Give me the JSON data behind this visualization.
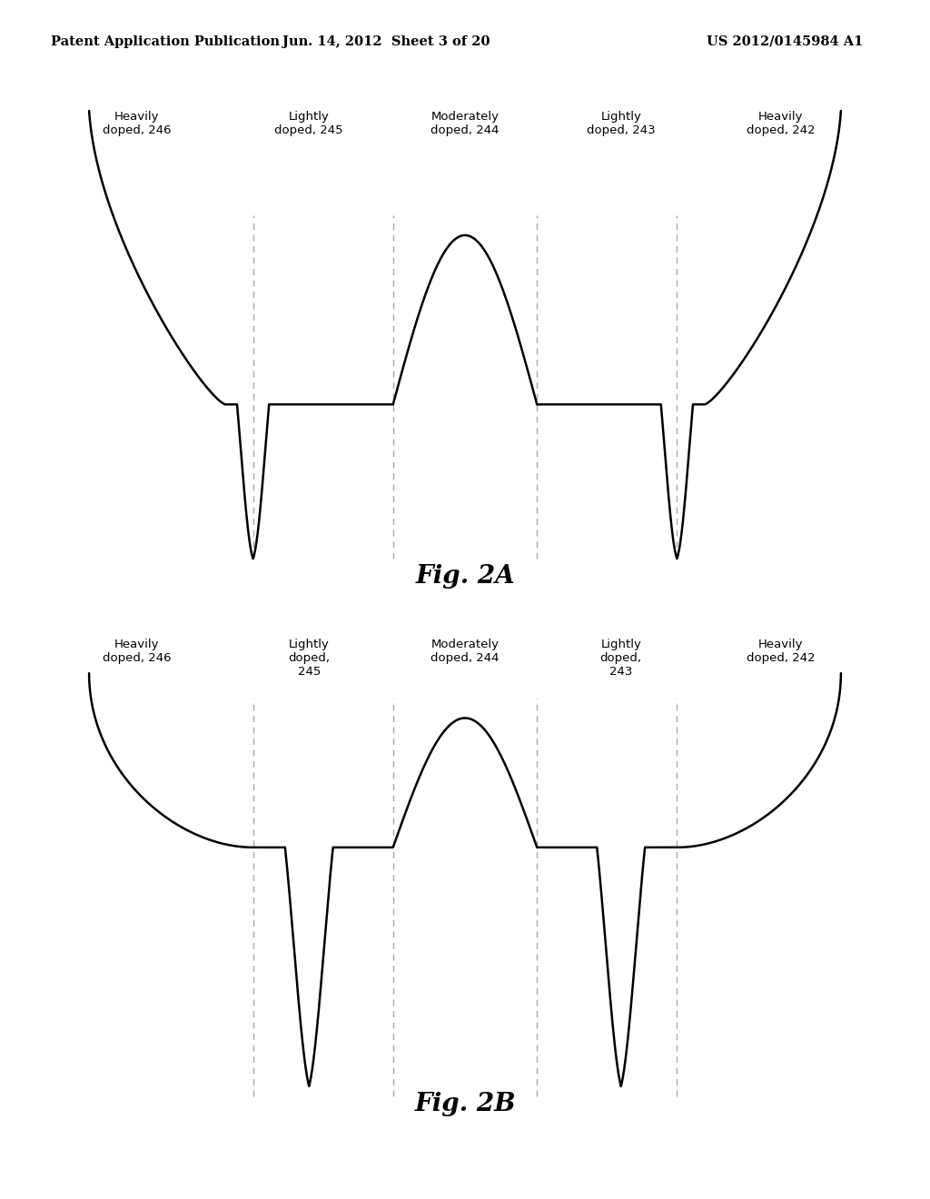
{
  "header_left": "Patent Application Publication",
  "header_mid": "Jun. 14, 2012  Sheet 3 of 20",
  "header_right": "US 2012/0145984 A1",
  "fig2a_title": "Fig. 2A",
  "fig2b_title": "Fig. 2B",
  "background_color": "#ffffff",
  "line_color": "#000000",
  "dash_color": "#aaaaaa",
  "header_fontsize": 10.5,
  "label_fontsize": 9.5,
  "fig_title_fontsize": 20
}
